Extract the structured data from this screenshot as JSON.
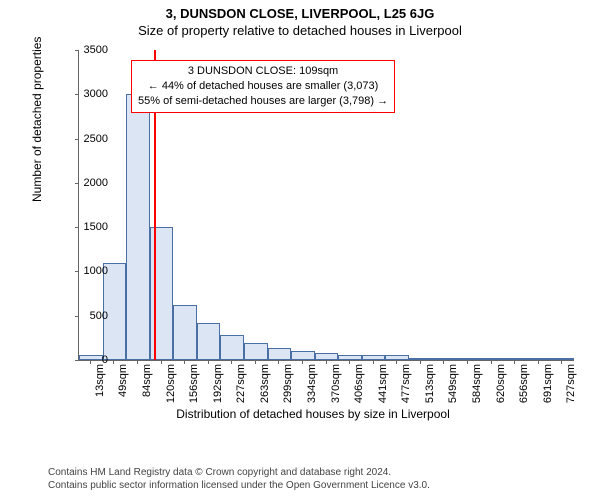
{
  "header": {
    "title_main": "3, DUNSDON CLOSE, LIVERPOOL, L25 6JG",
    "title_sub": "Size of property relative to detached houses in Liverpool"
  },
  "chart": {
    "type": "histogram",
    "ylabel": "Number of detached properties",
    "xlabel": "Distribution of detached houses by size in Liverpool",
    "ylim": [
      0,
      3500
    ],
    "ytick_step": 500,
    "yticks": [
      0,
      500,
      1000,
      1500,
      2000,
      2500,
      3000,
      3500
    ],
    "x_categories": [
      "13sqm",
      "49sqm",
      "84sqm",
      "120sqm",
      "156sqm",
      "192sqm",
      "227sqm",
      "263sqm",
      "299sqm",
      "334sqm",
      "370sqm",
      "406sqm",
      "441sqm",
      "477sqm",
      "513sqm",
      "549sqm",
      "584sqm",
      "620sqm",
      "656sqm",
      "691sqm",
      "727sqm"
    ],
    "bar_values": [
      60,
      1100,
      3000,
      1500,
      620,
      420,
      280,
      190,
      140,
      100,
      80,
      60,
      55,
      55,
      15,
      12,
      10,
      8,
      5,
      5,
      4
    ],
    "bar_fill": "#dbe5f4",
    "bar_stroke": "#4a6fa5",
    "bar_width_ratio": 1.0,
    "background_color": "#ffffff",
    "axis_color": "#666666",
    "tick_fontsize": 11,
    "label_fontsize": 12,
    "marker": {
      "position_sqm": 109,
      "color": "#ff0000",
      "width": 2
    },
    "annotation": {
      "border_color": "#ff0000",
      "background": "#ffffff",
      "fontsize": 11,
      "lines": [
        "3 DUNSDON CLOSE: 109sqm",
        "← 44% of detached houses are smaller (3,073)",
        "55% of semi-detached houses are larger (3,798) →"
      ]
    }
  },
  "footnote": {
    "line1": "Contains HM Land Registry data © Crown copyright and database right 2024.",
    "line2": "Contains public sector information licensed under the Open Government Licence v3.0."
  }
}
